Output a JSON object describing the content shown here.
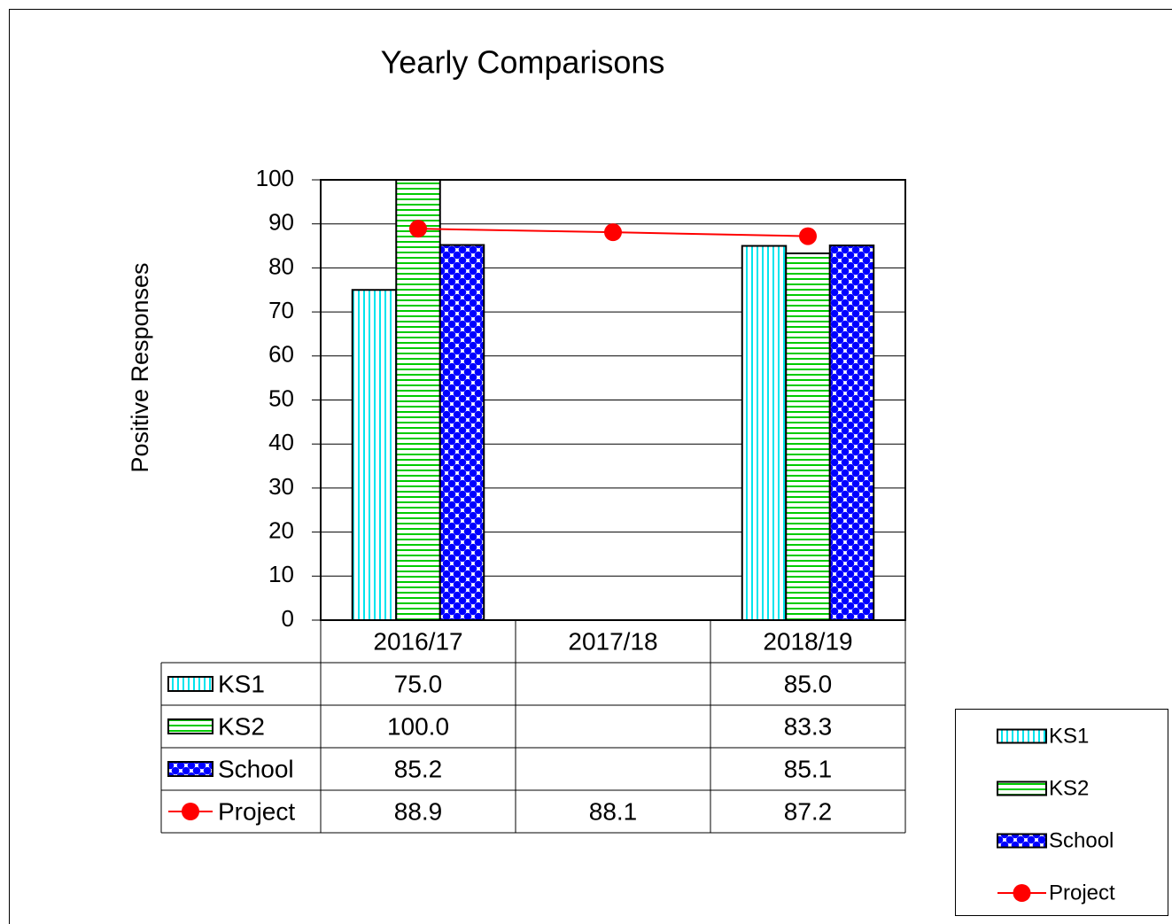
{
  "chart_data": {
    "type": "bar",
    "title": "Yearly Comparisons",
    "y_label": "Positive Responses",
    "categories": [
      "2016/17",
      "2017/18",
      "2018/19"
    ],
    "series": [
      {
        "name": "KS1",
        "type": "bar",
        "color": "#00e5ee",
        "pattern": "vertical",
        "values": [
          75,
          null,
          85
        ],
        "value_labels": [
          "75.0",
          null,
          "85.0"
        ]
      },
      {
        "name": "KS2",
        "type": "bar",
        "color": "#00cc00",
        "pattern": "horizontal",
        "values": [
          100,
          null,
          83.3
        ],
        "value_labels": [
          "100.0",
          null,
          "83.3"
        ]
      },
      {
        "name": "School",
        "type": "bar",
        "color": "#0000ff",
        "pattern": "dots",
        "values": [
          85.2,
          null,
          85.1
        ],
        "value_labels": [
          "85.2",
          null,
          "85.1"
        ]
      },
      {
        "name": "Project",
        "type": "line",
        "color": "#ff0000",
        "values": [
          88.9,
          88.1,
          87.2
        ],
        "value_labels": [
          "88.9",
          "88.1",
          "87.2"
        ]
      }
    ],
    "ylim": [
      0,
      100
    ],
    "yticks": [
      0,
      10,
      20,
      30,
      40,
      50,
      60,
      70,
      80,
      90,
      100
    ],
    "grid": true,
    "legend": "lower right",
    "data_table": true
  }
}
